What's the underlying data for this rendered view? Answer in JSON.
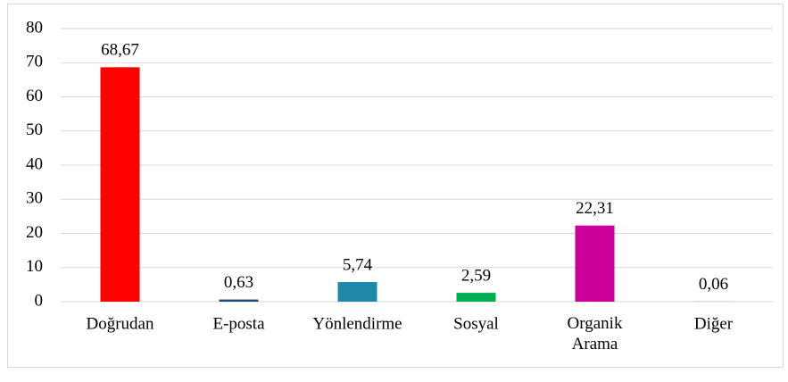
{
  "chart_data": {
    "type": "bar",
    "categories": [
      "Doğrudan",
      "E-posta",
      "Yönlendirme",
      "Sosyal",
      "Organik Arama",
      "Diğer"
    ],
    "values": [
      68.67,
      0.63,
      5.74,
      2.59,
      22.31,
      0.06
    ],
    "value_labels": [
      "68,67",
      "0,63",
      "5,74",
      "2,59",
      "22,31",
      "0,06"
    ],
    "colors": [
      "#ff0000",
      "#1f4e79",
      "#1f87a8",
      "#00b050",
      "#cc0099",
      "#8497b0"
    ],
    "ylim": [
      0,
      80
    ],
    "yticks": [
      0,
      10,
      20,
      30,
      40,
      50,
      60,
      70,
      80
    ],
    "grid": true
  }
}
